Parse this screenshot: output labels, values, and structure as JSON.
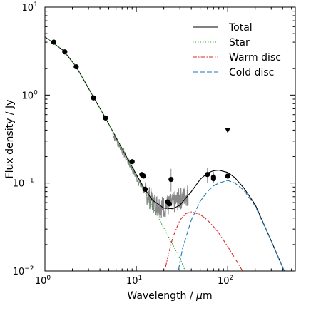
{
  "chart_data": {
    "type": "line",
    "title": "",
    "xlabel": "Wavelength / μm",
    "xlabel_prefix": "Wavelength / ",
    "xlabel_mu": "μ",
    "xlabel_unit": "m",
    "ylabel": "Flux density / Jy",
    "xscale": "log",
    "yscale": "log",
    "xlim": [
      1,
      550
    ],
    "ylim": [
      0.01,
      10
    ],
    "x_ticks": [
      {
        "value": 1,
        "base": "10",
        "exp": "0"
      },
      {
        "value": 10,
        "base": "10",
        "exp": "1"
      },
      {
        "value": 100,
        "base": "10",
        "exp": "2"
      }
    ],
    "y_ticks": [
      {
        "value": 0.01,
        "base": "10",
        "exp": "−2"
      },
      {
        "value": 0.1,
        "base": "10",
        "exp": "−1"
      },
      {
        "value": 1,
        "base": "10",
        "exp": "0"
      },
      {
        "value": 10,
        "base": "10",
        "exp": "1"
      }
    ],
    "legend": {
      "position": "top-right",
      "entries": [
        {
          "label": "Total",
          "color": "#000000",
          "style": "solid"
        },
        {
          "label": "Star",
          "color": "#2ca02c",
          "style": "dotted"
        },
        {
          "label": "Warm disc",
          "color": "#d62728",
          "style": "dashdot"
        },
        {
          "label": "Cold disc",
          "color": "#1f77b4",
          "style": "dashed"
        }
      ]
    },
    "series": [
      {
        "name": "Total",
        "color": "#000000",
        "style": "solid",
        "x": [
          1,
          1.2,
          1.6,
          2.2,
          3.4,
          4.6,
          6,
          8,
          10,
          12,
          15,
          20,
          25,
          30,
          40,
          50,
          60,
          70,
          80,
          100,
          120,
          150,
          200,
          300,
          400,
          500
        ],
        "y": [
          4.6,
          4.0,
          3.2,
          2.1,
          0.95,
          0.55,
          0.33,
          0.19,
          0.125,
          0.09,
          0.064,
          0.052,
          0.051,
          0.056,
          0.08,
          0.11,
          0.13,
          0.138,
          0.14,
          0.132,
          0.115,
          0.088,
          0.057,
          0.022,
          0.011,
          0.0065
        ]
      },
      {
        "name": "Star",
        "color": "#2ca02c",
        "style": "dotted",
        "x": [
          1,
          1.2,
          1.6,
          2.2,
          3.4,
          4.6,
          6,
          8,
          10,
          12,
          15,
          20,
          25,
          30,
          35
        ],
        "y": [
          4.6,
          4.0,
          3.2,
          2.1,
          0.95,
          0.55,
          0.33,
          0.19,
          0.122,
          0.085,
          0.054,
          0.031,
          0.02,
          0.014,
          0.0095
        ]
      },
      {
        "name": "Warm disc",
        "color": "#d62728",
        "style": "dashdot",
        "x": [
          20,
          22,
          25,
          30,
          35,
          40,
          50,
          60,
          70,
          80,
          100,
          120,
          150,
          180
        ],
        "y": [
          0.009,
          0.014,
          0.024,
          0.038,
          0.045,
          0.047,
          0.044,
          0.038,
          0.032,
          0.027,
          0.019,
          0.014,
          0.0095,
          0.0065
        ]
      },
      {
        "name": "Cold disc",
        "color": "#1f77b4",
        "style": "dashed",
        "x": [
          28,
          32,
          40,
          50,
          60,
          70,
          80,
          100,
          120,
          150,
          200,
          300,
          400,
          480
        ],
        "y": [
          0.0085,
          0.018,
          0.038,
          0.062,
          0.08,
          0.093,
          0.1,
          0.107,
          0.1,
          0.083,
          0.055,
          0.022,
          0.011,
          0.007
        ]
      }
    ],
    "spectrum": {
      "color": "#888888",
      "x": [
        5.5,
        6,
        7,
        8,
        9,
        10,
        11,
        12,
        13,
        14,
        15,
        16,
        17,
        18,
        19,
        20,
        22,
        24,
        26,
        28,
        30,
        32,
        34,
        36,
        37
      ],
      "y": [
        0.37,
        0.31,
        0.24,
        0.18,
        0.145,
        0.118,
        0.098,
        0.085,
        0.075,
        0.068,
        0.062,
        0.058,
        0.056,
        0.055,
        0.054,
        0.054,
        0.055,
        0.057,
        0.06,
        0.063,
        0.066,
        0.069,
        0.071,
        0.073,
        0.074
      ]
    },
    "photometry": [
      {
        "x": 1.25,
        "y": 4.0
      },
      {
        "x": 1.65,
        "y": 3.1
      },
      {
        "x": 2.2,
        "y": 2.1
      },
      {
        "x": 3.4,
        "y": 0.93
      },
      {
        "x": 4.6,
        "y": 0.55
      },
      {
        "x": 9.0,
        "y": 0.175
      },
      {
        "x": 11.5,
        "y": 0.125
      },
      {
        "x": 12.0,
        "y": 0.12
      },
      {
        "x": 12.5,
        "y": 0.085
      },
      {
        "x": 22.0,
        "y": 0.061
      },
      {
        "x": 23.0,
        "y": 0.058
      },
      {
        "x": 24.0,
        "y": 0.11
      },
      {
        "x": 60.0,
        "y": 0.125
      },
      {
        "x": 70.0,
        "y": 0.117
      },
      {
        "x": 70.0,
        "y": 0.112
      },
      {
        "x": 100.0,
        "y": 0.12
      }
    ],
    "error_bars": [
      {
        "x": 22.0,
        "y_low": 0.05,
        "y_high": 0.073
      },
      {
        "x": 24.0,
        "y_low": 0.08,
        "y_high": 0.145
      },
      {
        "x": 60.0,
        "y_low": 0.1,
        "y_high": 0.15
      },
      {
        "x": 70.0,
        "y_low": 0.1,
        "y_high": 0.135
      }
    ],
    "upper_limits": [
      {
        "x": 100.0,
        "y": 0.4
      }
    ]
  }
}
